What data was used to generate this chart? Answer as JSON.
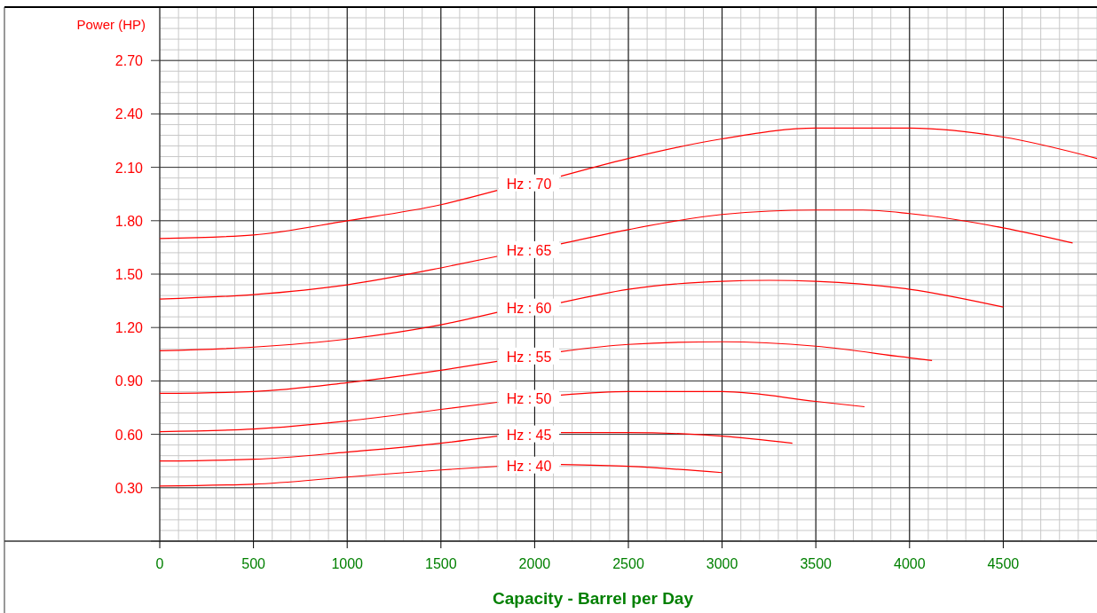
{
  "chart_data": {
    "type": "line",
    "xlabel": "Capacity - Barrel per Day",
    "ylabel": "Power (HP)",
    "xlim": [
      0,
      5000
    ],
    "xticks": [
      0,
      500,
      1000,
      1500,
      2000,
      2500,
      3000,
      3500,
      4000,
      4500
    ],
    "ylim": [
      0,
      3.0
    ],
    "yticks": [
      {
        "value": 0,
        "label": null
      },
      {
        "value": 0.3,
        "label": "0.30"
      },
      {
        "value": 0.6,
        "label": "0.60"
      },
      {
        "value": 0.9,
        "label": "0.90"
      },
      {
        "value": 1.2,
        "label": "1.20"
      },
      {
        "value": 1.5,
        "label": "1.50"
      },
      {
        "value": 1.8,
        "label": "1.80"
      },
      {
        "value": 2.1,
        "label": "2.10"
      },
      {
        "value": 2.4,
        "label": "2.40"
      },
      {
        "value": 2.7,
        "label": "2.70"
      }
    ],
    "grid": true,
    "series": [
      {
        "name": "Hz : 70",
        "color": "#ff0000",
        "x": [
          0,
          500,
          1000,
          1500,
          1800,
          1970,
          2140,
          2500,
          3000,
          3500,
          4000,
          4500,
          5000
        ],
        "values": [
          1.7,
          1.72,
          1.8,
          1.89,
          1.97,
          null,
          2.05,
          2.15,
          2.26,
          2.32,
          2.32,
          2.27,
          2.15
        ]
      },
      {
        "name": "Hz : 65",
        "color": "#ff0000",
        "x": [
          0,
          500,
          1000,
          1500,
          1800,
          1970,
          2140,
          2500,
          3000,
          3500,
          3750,
          4000,
          4500,
          4870
        ],
        "values": [
          1.36,
          1.385,
          1.44,
          1.535,
          1.6,
          null,
          1.67,
          1.75,
          1.835,
          1.86,
          1.86,
          1.84,
          1.76,
          1.675
        ]
      },
      {
        "name": "Hz : 60",
        "color": "#ff0000",
        "x": [
          0,
          500,
          1000,
          1500,
          1800,
          1970,
          2140,
          2500,
          3000,
          3250,
          3500,
          4000,
          4500
        ],
        "values": [
          1.07,
          1.09,
          1.135,
          1.215,
          1.285,
          null,
          1.34,
          1.415,
          1.46,
          1.465,
          1.46,
          1.415,
          1.315
        ]
      },
      {
        "name": "Hz : 55",
        "color": "#ff0000",
        "x": [
          0,
          500,
          1000,
          1500,
          1800,
          1970,
          2140,
          2500,
          3000,
          3500,
          4000,
          4120
        ],
        "values": [
          0.83,
          0.84,
          0.89,
          0.96,
          1.01,
          null,
          1.065,
          1.105,
          1.12,
          1.095,
          1.03,
          1.015
        ]
      },
      {
        "name": "Hz : 50",
        "color": "#ff0000",
        "x": [
          0,
          500,
          1000,
          1500,
          1800,
          1970,
          2140,
          2500,
          3000,
          3500,
          3760
        ],
        "values": [
          0.615,
          0.63,
          0.675,
          0.74,
          0.78,
          null,
          0.82,
          0.84,
          0.84,
          0.785,
          0.755
        ]
      },
      {
        "name": "Hz : 45",
        "color": "#ff0000",
        "x": [
          0,
          500,
          1000,
          1500,
          1800,
          1970,
          2140,
          2500,
          3000,
          3375
        ],
        "values": [
          0.45,
          0.46,
          0.5,
          0.55,
          0.59,
          null,
          0.61,
          0.61,
          0.59,
          0.55
        ]
      },
      {
        "name": "Hz : 40",
        "color": "#ff0000",
        "x": [
          0,
          500,
          1000,
          1500,
          1800,
          1970,
          2140,
          2500,
          3000
        ],
        "values": [
          0.31,
          0.32,
          0.36,
          0.4,
          0.42,
          null,
          0.43,
          0.42,
          0.385
        ]
      }
    ]
  }
}
